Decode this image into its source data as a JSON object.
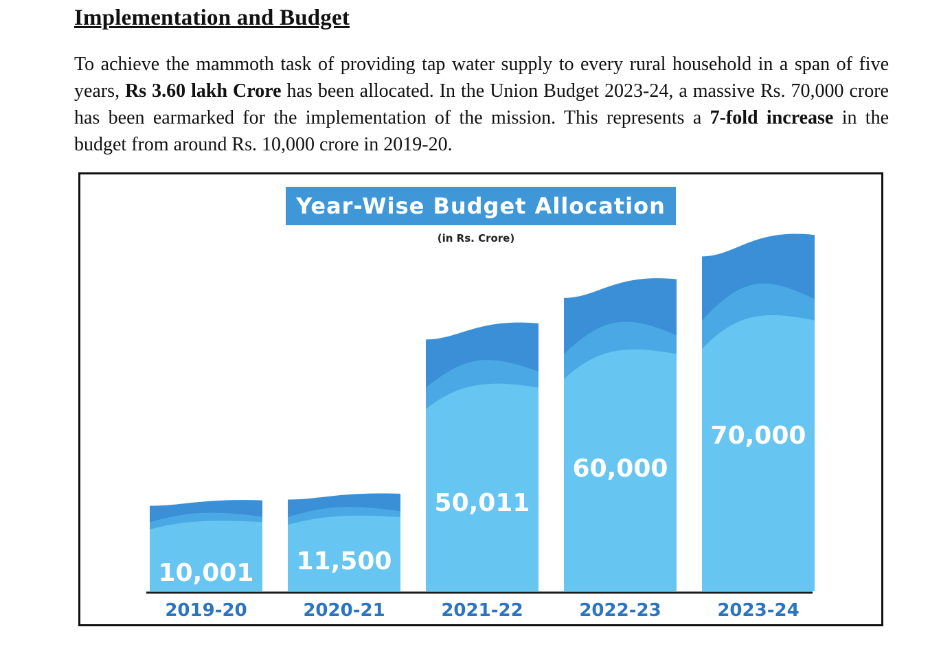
{
  "article": {
    "heading": "Implementation and Budget",
    "paragraph": {
      "t1": "To achieve the mammoth task of providing tap water supply to every rural household in a span of five years, ",
      "b1": "Rs 3.60 lakh Crore",
      "t2": " has been allocated. In the Union Budget 2023-24, a massive Rs. 70,000 crore has been earmarked for the implementation of the mission. This represents a ",
      "b2": "7-fold increase",
      "t3": " in the budget from around Rs. 10,000 crore in 2019-20."
    }
  },
  "colors": {
    "bar_light": "#66c6f1",
    "bar_mid": "#4aa9e4",
    "bar_dark": "#3a8fd6",
    "title_bg": "#3f97d8",
    "year_label": "#2b74c1",
    "value_label": "#ffffff",
    "baseline": "#1a1a1a"
  },
  "chart_data": {
    "type": "bar",
    "title": "Year-Wise Budget Allocation",
    "subtitle": "(in Rs. Crore)",
    "categories": [
      "2019-20",
      "2020-21",
      "2021-22",
      "2022-23",
      "2023-24"
    ],
    "values": [
      10001,
      11500,
      50011,
      60000,
      70000
    ],
    "value_labels": [
      "10,001",
      "11,500",
      "50,011",
      "60,000",
      "70,000"
    ],
    "ylim": [
      0,
      70000
    ],
    "grid": false,
    "legend": "none"
  }
}
